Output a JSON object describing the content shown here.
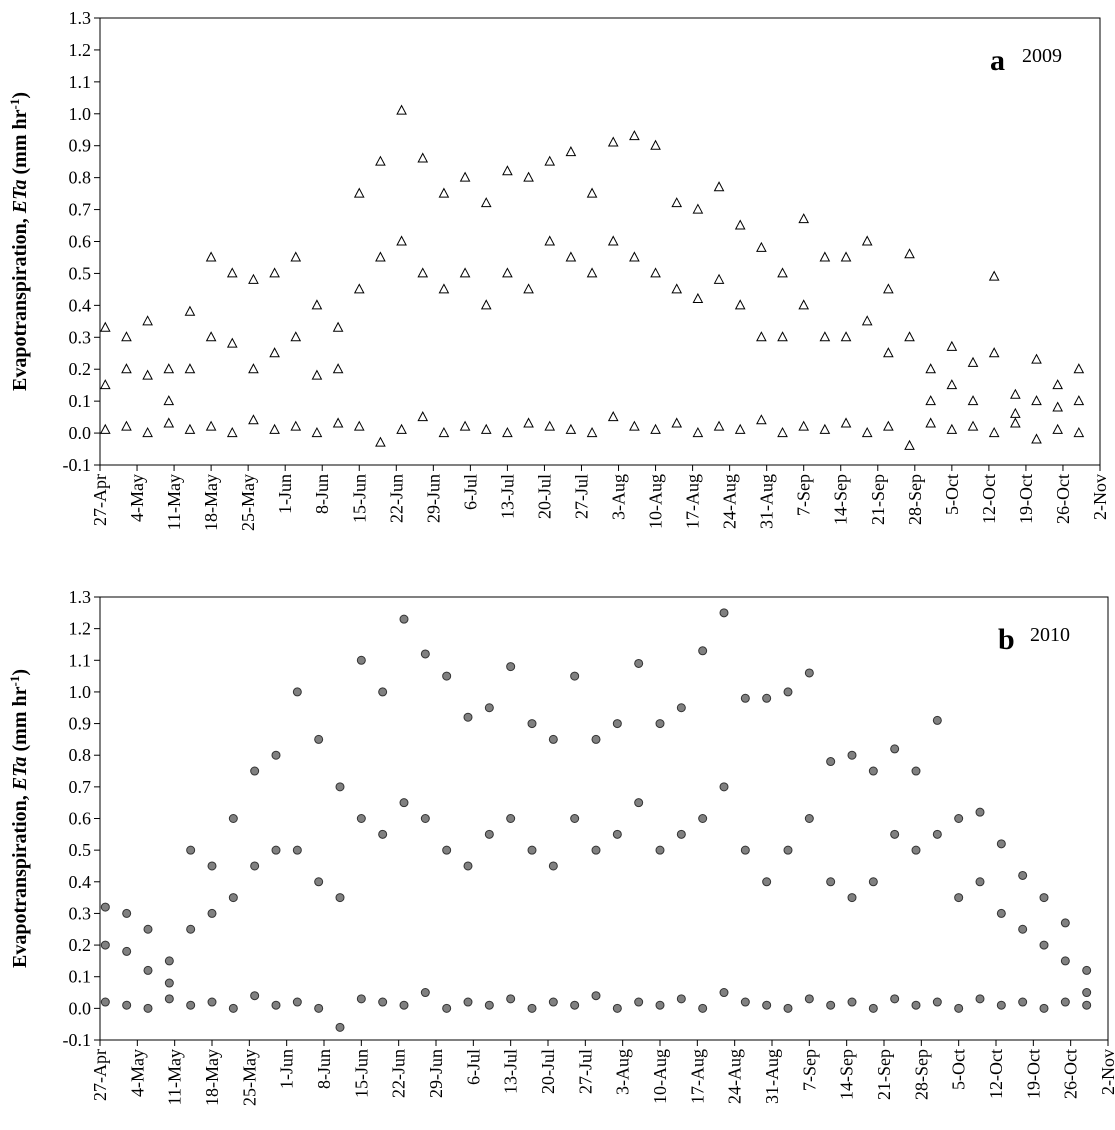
{
  "chart_data": [
    {
      "type": "scatter",
      "marker": "triangle",
      "color": "#000000",
      "fill": "#ffffff",
      "panel_label": "a",
      "year_label": "2009",
      "ylabel": [
        "Evapotranspiration, ",
        "ETa",
        " (mm hr",
        "-1",
        ")"
      ],
      "ylim": [
        -0.1,
        1.3
      ],
      "yticks": [
        -0.1,
        {
          "value": 0,
          "label": "0.0"
        },
        0.1,
        0.2,
        0.3,
        0.4,
        0.5,
        0.6,
        0.7,
        0.8,
        0.9,
        {
          "value": 1,
          "label": "1.0"
        },
        1.1,
        1.2,
        1.3
      ],
      "xlim": [
        "2009-04-27",
        "2009-11-02"
      ],
      "xticks": [
        {
          "value": "2009-04-27",
          "label": "27-Apr"
        },
        {
          "value": "2009-05-04",
          "label": "4-May"
        },
        {
          "value": "2009-05-11",
          "label": "11-May"
        },
        {
          "value": "2009-05-18",
          "label": "18-May"
        },
        {
          "value": "2009-05-25",
          "label": "25-May"
        },
        {
          "value": "2009-06-01",
          "label": "1-Jun"
        },
        {
          "value": "2009-06-08",
          "label": "8-Jun"
        },
        {
          "value": "2009-06-15",
          "label": "15-Jun"
        },
        {
          "value": "2009-06-22",
          "label": "22-Jun"
        },
        {
          "value": "2009-06-29",
          "label": "29-Jun"
        },
        {
          "value": "2009-07-06",
          "label": "6-Jul"
        },
        {
          "value": "2009-07-13",
          "label": "13-Jul"
        },
        {
          "value": "2009-07-20",
          "label": "20-Jul"
        },
        {
          "value": "2009-07-27",
          "label": "27-Jul"
        },
        {
          "value": "2009-08-03",
          "label": "3-Aug"
        },
        {
          "value": "2009-08-10",
          "label": "10-Aug"
        },
        {
          "value": "2009-08-17",
          "label": "17-Aug"
        },
        {
          "value": "2009-08-24",
          "label": "24-Aug"
        },
        {
          "value": "2009-08-31",
          "label": "31-Aug"
        },
        {
          "value": "2009-09-07",
          "label": "7-Sep"
        },
        {
          "value": "2009-09-14",
          "label": "14-Sep"
        },
        {
          "value": "2009-09-21",
          "label": "21-Sep"
        },
        {
          "value": "2009-09-28",
          "label": "28-Sep"
        },
        {
          "value": "2009-10-05",
          "label": "5-Oct"
        },
        {
          "value": "2009-10-12",
          "label": "12-Oct"
        },
        {
          "value": "2009-10-19",
          "label": "19-Oct"
        },
        {
          "value": "2009-10-26",
          "label": "26-Oct"
        },
        {
          "value": "2009-11-02",
          "label": "2-Nov"
        }
      ],
      "x": [
        "2009-04-28",
        "2009-04-28",
        "2009-04-28",
        "2009-05-02",
        "2009-05-02",
        "2009-05-02",
        "2009-05-06",
        "2009-05-06",
        "2009-05-06",
        "2009-05-10",
        "2009-05-10",
        "2009-05-10",
        "2009-05-14",
        "2009-05-14",
        "2009-05-14",
        "2009-05-18",
        "2009-05-18",
        "2009-05-18",
        "2009-05-22",
        "2009-05-22",
        "2009-05-22",
        "2009-05-26",
        "2009-05-26",
        "2009-05-26",
        "2009-05-30",
        "2009-05-30",
        "2009-05-30",
        "2009-06-03",
        "2009-06-03",
        "2009-06-03",
        "2009-06-07",
        "2009-06-07",
        "2009-06-07",
        "2009-06-11",
        "2009-06-11",
        "2009-06-11",
        "2009-06-15",
        "2009-06-15",
        "2009-06-15",
        "2009-06-19",
        "2009-06-19",
        "2009-06-19",
        "2009-06-23",
        "2009-06-23",
        "2009-06-23",
        "2009-06-27",
        "2009-06-27",
        "2009-06-27",
        "2009-07-01",
        "2009-07-01",
        "2009-07-01",
        "2009-07-05",
        "2009-07-05",
        "2009-07-05",
        "2009-07-09",
        "2009-07-09",
        "2009-07-09",
        "2009-07-13",
        "2009-07-13",
        "2009-07-13",
        "2009-07-17",
        "2009-07-17",
        "2009-07-17",
        "2009-07-21",
        "2009-07-21",
        "2009-07-21",
        "2009-07-25",
        "2009-07-25",
        "2009-07-25",
        "2009-07-29",
        "2009-07-29",
        "2009-07-29",
        "2009-08-02",
        "2009-08-02",
        "2009-08-02",
        "2009-08-06",
        "2009-08-06",
        "2009-08-06",
        "2009-08-10",
        "2009-08-10",
        "2009-08-10",
        "2009-08-14",
        "2009-08-14",
        "2009-08-14",
        "2009-08-18",
        "2009-08-18",
        "2009-08-18",
        "2009-08-22",
        "2009-08-22",
        "2009-08-22",
        "2009-08-26",
        "2009-08-26",
        "2009-08-26",
        "2009-08-30",
        "2009-08-30",
        "2009-08-30",
        "2009-09-03",
        "2009-09-03",
        "2009-09-03",
        "2009-09-07",
        "2009-09-07",
        "2009-09-07",
        "2009-09-11",
        "2009-09-11",
        "2009-09-11",
        "2009-09-15",
        "2009-09-15",
        "2009-09-15",
        "2009-09-19",
        "2009-09-19",
        "2009-09-19",
        "2009-09-23",
        "2009-09-23",
        "2009-09-23",
        "2009-09-27",
        "2009-09-27",
        "2009-09-27",
        "2009-10-01",
        "2009-10-01",
        "2009-10-01",
        "2009-10-05",
        "2009-10-05",
        "2009-10-05",
        "2009-10-09",
        "2009-10-09",
        "2009-10-09",
        "2009-10-13",
        "2009-10-13",
        "2009-10-13",
        "2009-10-17",
        "2009-10-17",
        "2009-10-17",
        "2009-10-21",
        "2009-10-21",
        "2009-10-21",
        "2009-10-25",
        "2009-10-25",
        "2009-10-25",
        "2009-10-29",
        "2009-10-29",
        "2009-10-29"
      ],
      "values": [
        0.33,
        0.15,
        0.01,
        0.3,
        0.2,
        0.02,
        0.35,
        0.18,
        0.0,
        0.2,
        0.1,
        0.03,
        0.38,
        0.2,
        0.01,
        0.55,
        0.3,
        0.02,
        0.5,
        0.28,
        0.0,
        0.48,
        0.2,
        0.04,
        0.5,
        0.25,
        0.01,
        0.55,
        0.3,
        0.02,
        0.4,
        0.18,
        0.0,
        0.33,
        0.2,
        0.03,
        0.75,
        0.45,
        0.02,
        0.85,
        0.55,
        -0.03,
        1.01,
        0.6,
        0.01,
        0.86,
        0.5,
        0.05,
        0.75,
        0.45,
        0.0,
        0.8,
        0.5,
        0.02,
        0.72,
        0.4,
        0.01,
        0.82,
        0.5,
        0.0,
        0.8,
        0.45,
        0.03,
        0.85,
        0.6,
        0.02,
        0.88,
        0.55,
        0.01,
        0.75,
        0.5,
        0.0,
        0.91,
        0.6,
        0.05,
        0.93,
        0.55,
        0.02,
        0.9,
        0.5,
        0.01,
        0.72,
        0.45,
        0.03,
        0.7,
        0.42,
        0.0,
        0.77,
        0.48,
        0.02,
        0.65,
        0.4,
        0.01,
        0.58,
        0.3,
        0.04,
        0.5,
        0.3,
        0.0,
        0.67,
        0.4,
        0.02,
        0.55,
        0.3,
        0.01,
        0.55,
        0.3,
        0.03,
        0.6,
        0.35,
        0.0,
        0.45,
        0.25,
        0.02,
        0.56,
        0.3,
        -0.04,
        0.2,
        0.1,
        0.03,
        0.27,
        0.15,
        0.01,
        0.22,
        0.1,
        0.02,
        0.49,
        0.25,
        0.0,
        0.12,
        0.06,
        0.03,
        0.23,
        0.1,
        -0.02,
        0.15,
        0.08,
        0.01,
        0.2,
        0.1,
        0.0
      ]
    },
    {
      "type": "scatter",
      "marker": "circle",
      "color": "#333333",
      "fill": "#808080",
      "panel_label": "b",
      "year_label": "2010",
      "ylabel": [
        "Evapotranspiration, ",
        "ETa",
        " (mm hr",
        "-1",
        ")"
      ],
      "ylim": [
        -0.1,
        1.3
      ],
      "yticks": [
        -0.1,
        {
          "value": 0,
          "label": "0.0"
        },
        0.1,
        0.2,
        0.3,
        0.4,
        0.5,
        0.6,
        0.7,
        0.8,
        0.9,
        {
          "value": 1,
          "label": "1.0"
        },
        1.1,
        1.2,
        1.3
      ],
      "xlim": [
        "2010-04-27",
        "2010-11-02"
      ],
      "xticks": [
        {
          "value": "2010-04-27",
          "label": "27-Apr"
        },
        {
          "value": "2010-05-04",
          "label": "4-May"
        },
        {
          "value": "2010-05-11",
          "label": "11-May"
        },
        {
          "value": "2010-05-18",
          "label": "18-May"
        },
        {
          "value": "2010-05-25",
          "label": "25-May"
        },
        {
          "value": "2010-06-01",
          "label": "1-Jun"
        },
        {
          "value": "2010-06-08",
          "label": "8-Jun"
        },
        {
          "value": "2010-06-15",
          "label": "15-Jun"
        },
        {
          "value": "2010-06-22",
          "label": "22-Jun"
        },
        {
          "value": "2010-06-29",
          "label": "29-Jun"
        },
        {
          "value": "2010-07-06",
          "label": "6-Jul"
        },
        {
          "value": "2010-07-13",
          "label": "13-Jul"
        },
        {
          "value": "2010-07-20",
          "label": "20-Jul"
        },
        {
          "value": "2010-07-27",
          "label": "27-Jul"
        },
        {
          "value": "2010-08-03",
          "label": "3-Aug"
        },
        {
          "value": "2010-08-10",
          "label": "10-Aug"
        },
        {
          "value": "2010-08-17",
          "label": "17-Aug"
        },
        {
          "value": "2010-08-24",
          "label": "24-Aug"
        },
        {
          "value": "2010-08-31",
          "label": "31-Aug"
        },
        {
          "value": "2010-09-07",
          "label": "7-Sep"
        },
        {
          "value": "2010-09-14",
          "label": "14-Sep"
        },
        {
          "value": "2010-09-21",
          "label": "21-Sep"
        },
        {
          "value": "2010-09-28",
          "label": "28-Sep"
        },
        {
          "value": "2010-10-05",
          "label": "5-Oct"
        },
        {
          "value": "2010-10-12",
          "label": "12-Oct"
        },
        {
          "value": "2010-10-19",
          "label": "19-Oct"
        },
        {
          "value": "2010-10-26",
          "label": "26-Oct"
        },
        {
          "value": "2010-11-02",
          "label": "2-Nov"
        }
      ],
      "x": [
        "2010-04-28",
        "2010-04-28",
        "2010-04-28",
        "2010-05-02",
        "2010-05-02",
        "2010-05-02",
        "2010-05-06",
        "2010-05-06",
        "2010-05-06",
        "2010-05-10",
        "2010-05-10",
        "2010-05-10",
        "2010-05-14",
        "2010-05-14",
        "2010-05-14",
        "2010-05-18",
        "2010-05-18",
        "2010-05-18",
        "2010-05-22",
        "2010-05-22",
        "2010-05-22",
        "2010-05-26",
        "2010-05-26",
        "2010-05-26",
        "2010-05-30",
        "2010-05-30",
        "2010-05-30",
        "2010-06-03",
        "2010-06-03",
        "2010-06-03",
        "2010-06-07",
        "2010-06-07",
        "2010-06-07",
        "2010-06-11",
        "2010-06-11",
        "2010-06-11",
        "2010-06-15",
        "2010-06-15",
        "2010-06-15",
        "2010-06-19",
        "2010-06-19",
        "2010-06-19",
        "2010-06-23",
        "2010-06-23",
        "2010-06-23",
        "2010-06-27",
        "2010-06-27",
        "2010-06-27",
        "2010-07-01",
        "2010-07-01",
        "2010-07-01",
        "2010-07-05",
        "2010-07-05",
        "2010-07-05",
        "2010-07-09",
        "2010-07-09",
        "2010-07-09",
        "2010-07-13",
        "2010-07-13",
        "2010-07-13",
        "2010-07-17",
        "2010-07-17",
        "2010-07-17",
        "2010-07-21",
        "2010-07-21",
        "2010-07-21",
        "2010-07-25",
        "2010-07-25",
        "2010-07-25",
        "2010-07-29",
        "2010-07-29",
        "2010-07-29",
        "2010-08-02",
        "2010-08-02",
        "2010-08-02",
        "2010-08-06",
        "2010-08-06",
        "2010-08-06",
        "2010-08-10",
        "2010-08-10",
        "2010-08-10",
        "2010-08-14",
        "2010-08-14",
        "2010-08-14",
        "2010-08-18",
        "2010-08-18",
        "2010-08-18",
        "2010-08-22",
        "2010-08-22",
        "2010-08-22",
        "2010-08-26",
        "2010-08-26",
        "2010-08-26",
        "2010-08-30",
        "2010-08-30",
        "2010-08-30",
        "2010-09-03",
        "2010-09-03",
        "2010-09-03",
        "2010-09-07",
        "2010-09-07",
        "2010-09-07",
        "2010-09-11",
        "2010-09-11",
        "2010-09-11",
        "2010-09-15",
        "2010-09-15",
        "2010-09-15",
        "2010-09-19",
        "2010-09-19",
        "2010-09-19",
        "2010-09-23",
        "2010-09-23",
        "2010-09-23",
        "2010-09-27",
        "2010-09-27",
        "2010-09-27",
        "2010-10-01",
        "2010-10-01",
        "2010-10-01",
        "2010-10-05",
        "2010-10-05",
        "2010-10-05",
        "2010-10-09",
        "2010-10-09",
        "2010-10-09",
        "2010-10-13",
        "2010-10-13",
        "2010-10-13",
        "2010-10-17",
        "2010-10-17",
        "2010-10-17",
        "2010-10-21",
        "2010-10-21",
        "2010-10-21",
        "2010-10-25",
        "2010-10-25",
        "2010-10-25",
        "2010-10-29",
        "2010-10-29",
        "2010-10-29"
      ],
      "values": [
        0.32,
        0.2,
        0.02,
        0.3,
        0.18,
        0.01,
        0.25,
        0.12,
        0.0,
        0.15,
        0.08,
        0.03,
        0.5,
        0.25,
        0.01,
        0.45,
        0.3,
        0.02,
        0.6,
        0.35,
        0.0,
        0.75,
        0.45,
        0.04,
        0.8,
        0.5,
        0.01,
        1.0,
        0.5,
        0.02,
        0.85,
        0.4,
        0.0,
        0.7,
        0.35,
        -0.06,
        1.1,
        0.6,
        0.03,
        1.0,
        0.55,
        0.02,
        1.23,
        0.65,
        0.01,
        1.12,
        0.6,
        0.05,
        1.05,
        0.5,
        0.0,
        0.92,
        0.45,
        0.02,
        0.95,
        0.55,
        0.01,
        1.08,
        0.6,
        0.03,
        0.9,
        0.5,
        0.0,
        0.85,
        0.45,
        0.02,
        1.05,
        0.6,
        0.01,
        0.85,
        0.5,
        0.04,
        0.9,
        0.55,
        0.0,
        1.09,
        0.65,
        0.02,
        0.9,
        0.5,
        0.01,
        0.95,
        0.55,
        0.03,
        1.13,
        0.6,
        0.0,
        1.25,
        0.7,
        0.05,
        0.98,
        0.5,
        0.02,
        0.98,
        0.4,
        0.01,
        1.0,
        0.5,
        0.0,
        1.06,
        0.6,
        0.03,
        0.78,
        0.4,
        0.01,
        0.8,
        0.35,
        0.02,
        0.75,
        0.4,
        0.0,
        0.82,
        0.55,
        0.03,
        0.75,
        0.5,
        0.01,
        0.91,
        0.55,
        0.02,
        0.6,
        0.35,
        0.0,
        0.62,
        0.4,
        0.03,
        0.52,
        0.3,
        0.01,
        0.42,
        0.25,
        0.02,
        0.35,
        0.2,
        0.0,
        0.27,
        0.15,
        0.02,
        0.12,
        0.05,
        0.01
      ]
    }
  ]
}
